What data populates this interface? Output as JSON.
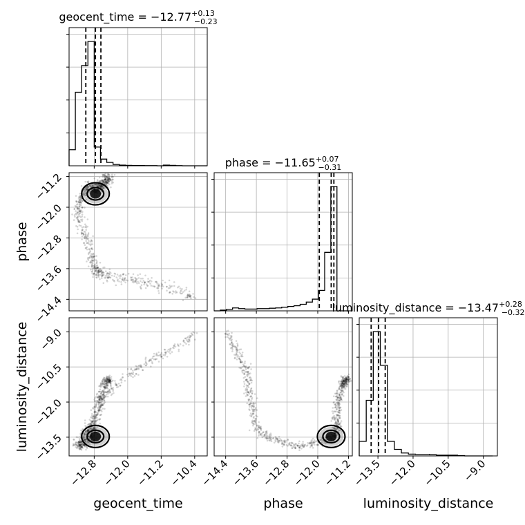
{
  "chart_data": {
    "type": "corner",
    "parameters": [
      "geocent_time",
      "phase",
      "luminosity_distance"
    ],
    "titles": {
      "geocent_time": {
        "name": "geocent_time",
        "median": "−12.77",
        "plus": "+0.13",
        "minus": "−0.23"
      },
      "phase": {
        "name": "phase",
        "median": "−11.65",
        "plus": "+0.07",
        "minus": "−0.31"
      },
      "luminosity_distance": {
        "name": "luminosity_distance",
        "median": "−13.47",
        "plus": "+0.28",
        "minus": "−0.32"
      }
    },
    "ranges": {
      "geocent_time": [
        -13.4,
        -10.1
      ],
      "phase": [
        -14.7,
        -11.1
      ],
      "luminosity_distance": [
        -14.3,
        -8.4
      ]
    },
    "ticks": {
      "geocent_time": {
        "values": [
          -12.8,
          -12.0,
          -11.2,
          -10.4
        ],
        "labels": [
          "−12.8",
          "−12.0",
          "−11.2",
          "−10.4"
        ]
      },
      "phase": {
        "values": [
          -14.4,
          -13.6,
          -12.8,
          -12.0,
          -11.2
        ],
        "labels": [
          "−14.4",
          "−13.6",
          "−12.8",
          "−12.0",
          "−11.2"
        ]
      },
      "luminosity_distance": {
        "values": [
          -13.5,
          -12.0,
          -10.5,
          -9.0
        ],
        "labels": [
          "−13.5",
          "−12.0",
          "−10.5",
          "−9.0"
        ]
      }
    },
    "quantiles": {
      "geocent_time": [
        -13.0,
        -12.77,
        -12.64
      ],
      "phase": [
        -11.96,
        -11.65,
        -11.58
      ],
      "luminosity_distance": [
        -13.79,
        -13.47,
        -13.19
      ]
    },
    "histograms": {
      "geocent_time": {
        "edges": [
          -13.4,
          -13.25,
          -13.1,
          -12.95,
          -12.8,
          -12.65,
          -12.5,
          -12.35,
          -12.2,
          -12.05,
          -11.9,
          -11.75,
          -11.6,
          -11.45,
          -11.3,
          -11.15,
          -11.0,
          -10.85,
          -10.7,
          -10.55,
          -10.4,
          -10.25,
          -10.1
        ],
        "counts": [
          0.12,
          0.55,
          0.75,
          0.93,
          0.14,
          0.05,
          0.025,
          0.01,
          0.005,
          0.003,
          0.002,
          0.002,
          0.001,
          0.001,
          0.0,
          0.005,
          0.003,
          0.001,
          0.0,
          0.0,
          0.0,
          0.0
        ]
      },
      "phase": {
        "edges": [
          -14.7,
          -14.54,
          -14.38,
          -14.22,
          -14.06,
          -13.9,
          -13.74,
          -13.58,
          -13.42,
          -13.26,
          -13.1,
          -12.94,
          -12.78,
          -12.62,
          -12.46,
          -12.3,
          -12.14,
          -11.98,
          -11.82,
          -11.66,
          -11.5,
          -11.34,
          -11.18
        ],
        "counts": [
          0.0,
          0.005,
          0.01,
          0.02,
          0.015,
          0.012,
          0.012,
          0.015,
          0.015,
          0.018,
          0.02,
          0.025,
          0.03,
          0.035,
          0.045,
          0.06,
          0.08,
          0.14,
          0.4,
          0.85,
          0.0,
          0.0
        ]
      },
      "luminosity_distance": {
        "edges": [
          -14.3,
          -14.0,
          -13.7,
          -13.4,
          -13.1,
          -12.8,
          -12.5,
          -12.2,
          -11.9,
          -11.6,
          -11.3,
          -11.0,
          -10.7,
          -10.4,
          -10.1,
          -9.8,
          -9.5,
          -9.2,
          -8.9,
          -8.6
        ],
        "counts": [
          0.1,
          0.38,
          0.85,
          0.62,
          0.1,
          0.045,
          0.02,
          0.012,
          0.01,
          0.01,
          0.008,
          0.005,
          0.005,
          0.005,
          0.002,
          0.0,
          0.0,
          0.0,
          0.0
        ]
      }
    },
    "scatter_path": {
      "geocent_time": [
        -12.45,
        -12.55,
        -12.65,
        -12.75,
        -12.85,
        -12.95,
        -13.05,
        -13.15,
        -13.18,
        -13.12,
        -13.0,
        -12.9,
        -12.85,
        -12.8,
        -12.75,
        -12.7,
        -12.6,
        -12.4,
        -12.1,
        -11.8,
        -11.5,
        -11.2,
        -10.9,
        -10.6,
        -10.4
      ],
      "phase": [
        -11.25,
        -11.35,
        -11.45,
        -11.5,
        -11.5,
        -11.52,
        -11.6,
        -11.9,
        -12.2,
        -12.5,
        -12.8,
        -13.1,
        -13.35,
        -13.55,
        -13.65,
        -13.7,
        -13.75,
        -13.8,
        -13.85,
        -13.9,
        -14.0,
        -14.05,
        -14.15,
        -14.25,
        -14.35
      ],
      "luminosity_distance": [
        -11.0,
        -11.3,
        -11.8,
        -12.4,
        -12.9,
        -13.2,
        -13.5,
        -13.7,
        -13.8,
        -13.9,
        -13.75,
        -13.6,
        -13.5,
        -13.2,
        -12.8,
        -12.2,
        -11.8,
        -11.5,
        -11.0,
        -10.6,
        -10.3,
        -10.0,
        -9.7,
        -9.4,
        -9.0
      ]
    },
    "grid": true
  }
}
